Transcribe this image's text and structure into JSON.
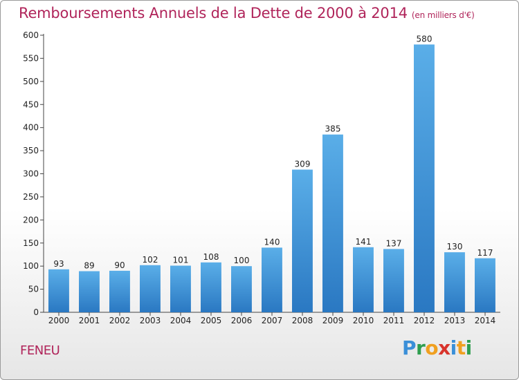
{
  "chart_data": {
    "type": "bar",
    "title": "Remboursements Annuels de la Dette de 2000 à 2014",
    "unit_note": "(en milliers d'€)",
    "xlabel": "",
    "ylabel": "",
    "categories": [
      "2000",
      "2001",
      "2002",
      "2003",
      "2004",
      "2005",
      "2006",
      "2007",
      "2008",
      "2009",
      "2010",
      "2011",
      "2012",
      "2013",
      "2014"
    ],
    "values": [
      93,
      89,
      90,
      102,
      101,
      108,
      100,
      140,
      309,
      385,
      141,
      137,
      580,
      130,
      117
    ],
    "ylim": [
      0,
      600
    ],
    "yticks": [
      0,
      50,
      100,
      150,
      200,
      250,
      300,
      350,
      400,
      450,
      500,
      550,
      600
    ],
    "grid": false,
    "legend": "none",
    "colors": {
      "bar_light": "#5aaee8",
      "bar_dark": "#2a78c2",
      "title": "#b0245a"
    }
  },
  "footer": {
    "commune": "FENEU",
    "logo_letters": [
      "P",
      "r",
      "o",
      "x",
      "i",
      "t",
      "i"
    ]
  }
}
